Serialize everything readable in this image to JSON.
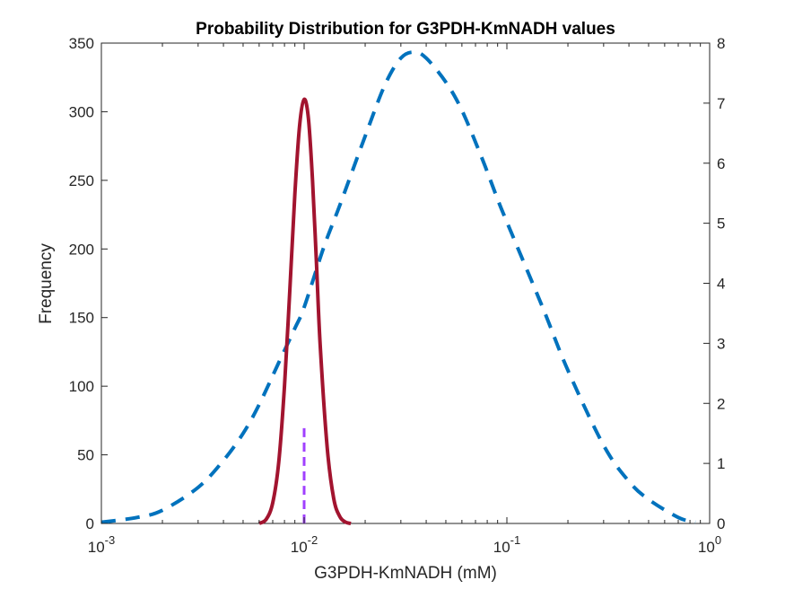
{
  "chart_data": {
    "type": "line",
    "title": "Probability Distribution for G3PDH-KmNADH values",
    "xlabel": "G3PDH-KmNADH (mM)",
    "ylabel": "Frequency",
    "x_scale": "log",
    "xlim": [
      0.001,
      1
    ],
    "ylim_left": [
      0,
      350
    ],
    "ylim_right": [
      0,
      8
    ],
    "x_ticks": [
      {
        "value": 0.001,
        "base": "10",
        "exp": "-3"
      },
      {
        "value": 0.01,
        "base": "10",
        "exp": "-2"
      },
      {
        "value": 0.1,
        "base": "10",
        "exp": "-1"
      },
      {
        "value": 1,
        "base": "10",
        "exp": "0"
      }
    ],
    "y_ticks_left": [
      "0",
      "50",
      "100",
      "150",
      "200",
      "250",
      "300",
      "350"
    ],
    "y_ticks_right": [
      "0",
      "1",
      "2",
      "3",
      "4",
      "5",
      "6",
      "7",
      "8"
    ],
    "grid": false,
    "series": [
      {
        "style": "dashed",
        "color": "#0072BD",
        "axis": "right",
        "x": [
          0.001,
          0.0015,
          0.002,
          0.003,
          0.004,
          0.005,
          0.006,
          0.0075,
          0.009,
          0.01,
          0.0125,
          0.015,
          0.02,
          0.025,
          0.03,
          0.035,
          0.04,
          0.05,
          0.06,
          0.075,
          0.09,
          0.1,
          0.15,
          0.2,
          0.3,
          0.4,
          0.5,
          0.7,
          0.85
        ],
        "values": [
          0.02,
          0.1,
          0.22,
          0.6,
          1.05,
          1.5,
          1.98,
          2.68,
          3.25,
          3.6,
          4.6,
          5.3,
          6.45,
          7.3,
          7.75,
          7.85,
          7.75,
          7.35,
          6.88,
          6.1,
          5.4,
          5.02,
          3.6,
          2.55,
          1.3,
          0.7,
          0.4,
          0.1,
          0.02
        ]
      },
      {
        "style": "solid",
        "color": "#A2142F",
        "axis": "left",
        "x": [
          0.006,
          0.0065,
          0.007,
          0.0075,
          0.008,
          0.0085,
          0.009,
          0.0095,
          0.01,
          0.0105,
          0.011,
          0.0115,
          0.012,
          0.013,
          0.014,
          0.015,
          0.016,
          0.017
        ],
        "values": [
          0,
          3,
          15,
          45,
          100,
          170,
          240,
          290,
          309,
          295,
          250,
          190,
          130,
          55,
          18,
          5,
          1,
          0
        ]
      },
      {
        "style": "dashed",
        "color": "#A040FF",
        "axis": "left",
        "x": [
          0.01,
          0.01
        ],
        "values": [
          0,
          71
        ]
      }
    ]
  }
}
